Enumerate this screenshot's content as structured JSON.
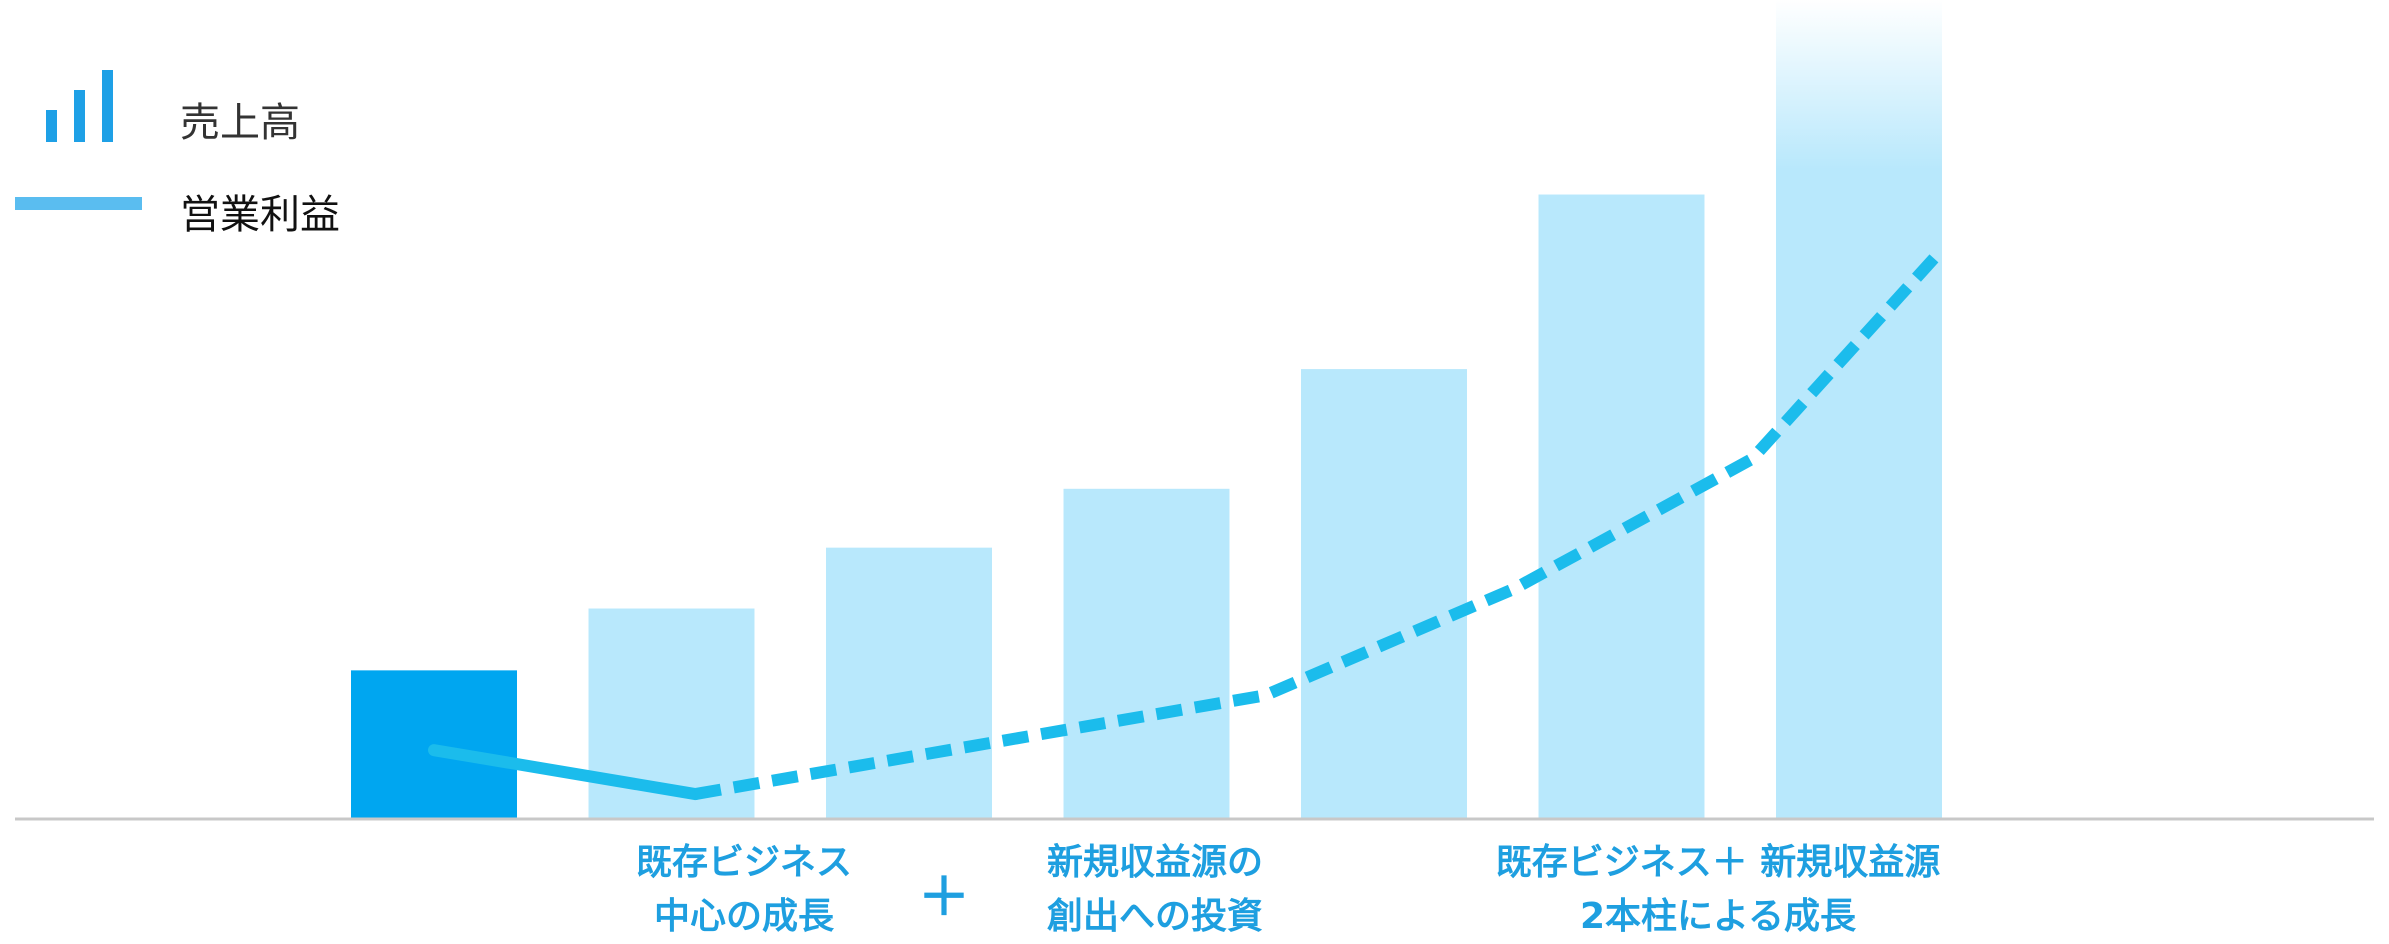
{
  "colors": {
    "highlight_bar": "#00a6f0",
    "bar": "#b8e8fc",
    "line": "#1bbcec",
    "legend_bar_icon": "#1ea0e6",
    "legend_line_icon": "#5abdf0",
    "axis": "#c8c8c8",
    "annotation": "#1e9fe0"
  },
  "legend": {
    "bar_label": "売上高",
    "line_label": "営業利益",
    "bar_icon": "bar-chart-icon",
    "line_icon": "line-segment-icon"
  },
  "annotations": {
    "phase1_line1": "既存ビジネス",
    "phase1_line2": "中心の成長",
    "plus": "＋",
    "phase2_line1": "新規収益源の",
    "phase2_line2": "創出への投資",
    "phase3_line1": "既存ビジネス＋ 新規収益源",
    "phase3_line2": "2本柱による成長"
  },
  "chart_data": {
    "type": "bar",
    "ylim": [
      0,
      820
    ],
    "bars": {
      "name": "売上高",
      "values": [
        148,
        210,
        271,
        330,
        450,
        625,
        820
      ],
      "highlight_index": 0,
      "fade_top_index": 6
    },
    "line": {
      "name": "営業利益",
      "points": [
        {
          "x": 0,
          "y": 68
        },
        {
          "x": 1.1,
          "y": 24
        },
        {
          "x": 3.5,
          "y": 123
        },
        {
          "x": 4.55,
          "y": 230
        },
        {
          "x": 5.55,
          "y": 360
        },
        {
          "x": 6.35,
          "y": 570
        }
      ],
      "solid_until_index": 1
    },
    "grid": false,
    "legend_position": "top-left"
  }
}
